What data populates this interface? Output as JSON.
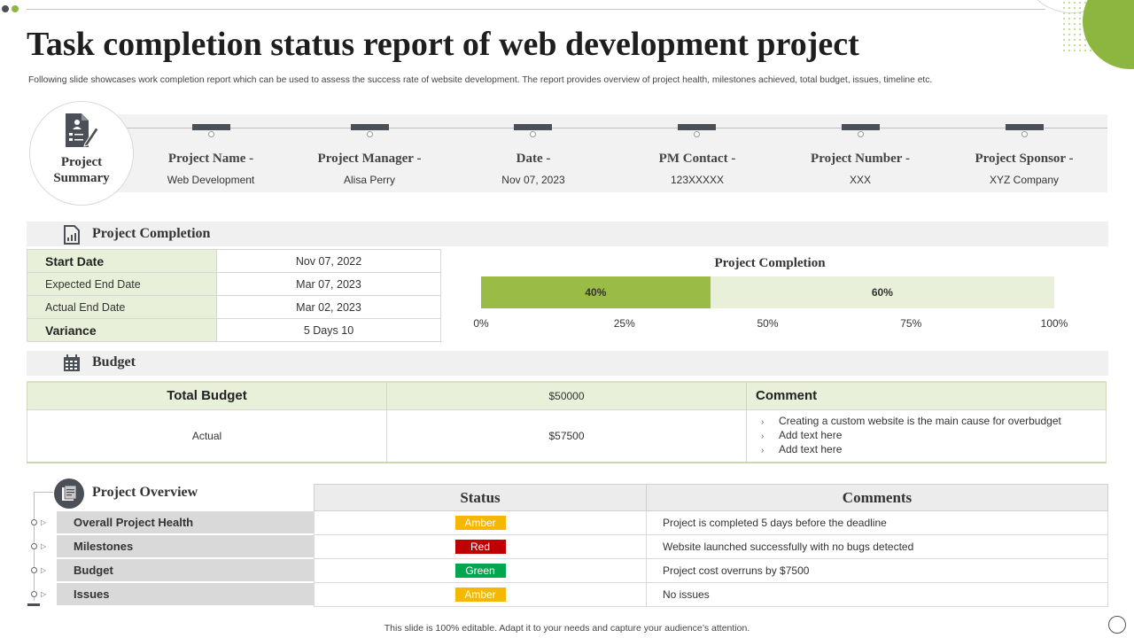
{
  "title": "Task completion status report of web development project",
  "subtitle": "Following slide showcases work completion report which can be used to assess the success rate of website development. The report provides overview of project health, milestones achieved, total budget, issues, timeline etc.",
  "summary": {
    "heading_line1": "Project",
    "heading_line2": "Summary",
    "fields": [
      {
        "label": "Project Name -",
        "value": "Web Development"
      },
      {
        "label": "Project Manager -",
        "value": "Alisa Perry"
      },
      {
        "label": "Date -",
        "value": "Nov 07, 2023"
      },
      {
        "label": "PM Contact -",
        "value": "123XXXXX"
      },
      {
        "label": "Project Number -",
        "value": "XXX"
      },
      {
        "label": "Project Sponsor -",
        "value": "XYZ  Company"
      }
    ]
  },
  "completion": {
    "section_title": "Project Completion",
    "rows": [
      {
        "label": "Start Date",
        "value": "Nov 07, 2022"
      },
      {
        "label": "Expected End Date",
        "value": "Mar 07, 2023"
      },
      {
        "label": "Actual End Date",
        "value": "Mar 02, 2023"
      },
      {
        "label": "Variance",
        "value": "5 Days 10"
      }
    ]
  },
  "chart_data": {
    "type": "bar",
    "orientation": "horizontal-stacked",
    "title": "Project Completion",
    "series": [
      {
        "value": 40,
        "label": "40%",
        "color": "#9bbb47"
      },
      {
        "value": 60,
        "label": "60%",
        "color": "#e9f0da"
      }
    ],
    "xlim": [
      0,
      100
    ],
    "ticks": [
      "0%",
      "25%",
      "50%",
      "75%",
      "100%"
    ],
    "tick_values": [
      0,
      25,
      50,
      75,
      100
    ]
  },
  "budget": {
    "section_title": "Budget",
    "header": {
      "label": "Total Budget",
      "amount": "$50000",
      "comment_label": "Comment"
    },
    "row": {
      "label": "Actual",
      "amount": "$57500",
      "comments": [
        "Creating a custom website is the main cause for overbudget",
        "Add text here",
        "Add text here"
      ]
    }
  },
  "overview": {
    "section_title": "Project Overview",
    "status_header": "Status",
    "comments_header": "Comments",
    "rows": [
      {
        "label": "Overall Project Health",
        "status": "Amber",
        "status_color": "#f5b800",
        "comment": "Project is completed 5 days before the deadline"
      },
      {
        "label": "Milestones",
        "status": "Red",
        "status_color": "#c00000",
        "comment": "Website launched successfully with no bugs detected"
      },
      {
        "label": "Budget",
        "status": "Green",
        "status_color": "#00a650",
        "comment": "Project cost overruns by $7500"
      },
      {
        "label": "Issues",
        "status": "Amber",
        "status_color": "#f5b800",
        "comment": "No issues"
      }
    ]
  },
  "footer": "This slide is 100% editable.  Adapt it to your needs and capture your audience’s attention.",
  "colors": {
    "accent_green": "#8db640",
    "dark": "#4a4f58",
    "light_green": "#e9f0da"
  }
}
